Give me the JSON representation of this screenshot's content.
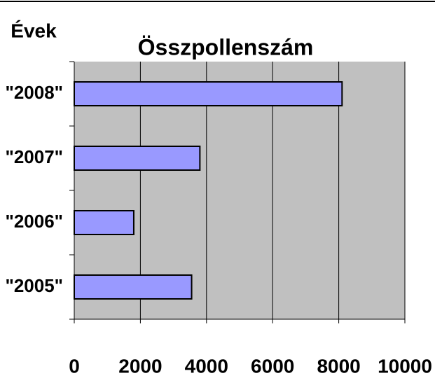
{
  "chart_data": {
    "type": "bar",
    "orientation": "horizontal",
    "title": "Összpollenszám",
    "ylabel": "Évek",
    "categories": [
      "\"2008\"",
      "\"2007\"",
      "\"2006\"",
      "\"2005\""
    ],
    "values": [
      8100,
      3800,
      1800,
      3550
    ],
    "color": "#9999ff",
    "background": "#c0c0c0",
    "xlim": [
      0,
      10000
    ],
    "xticks": [
      0,
      2000,
      4000,
      6000,
      8000,
      10000
    ],
    "grid": true
  }
}
